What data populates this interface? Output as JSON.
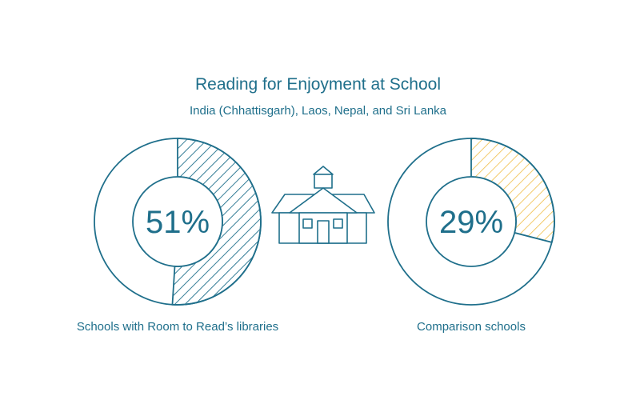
{
  "chart_data": {
    "type": "donut",
    "title": "Reading for Enjoyment at School",
    "subtitle": "India (Chhattisgarh), Laos, Nepal, and Sri Lanka",
    "charts": [
      {
        "label": "Schools with Room to Read’s libraries",
        "value": 51,
        "value_text": "51%",
        "color": "#1f6f8b"
      },
      {
        "label": "Comparison schools",
        "value": 29,
        "value_text": "29%",
        "color": "#f2c45a"
      }
    ],
    "icon": "schoolhouse-icon"
  },
  "colors": {
    "primary": "#1f6f8b",
    "highlight": "#f2c45a"
  }
}
